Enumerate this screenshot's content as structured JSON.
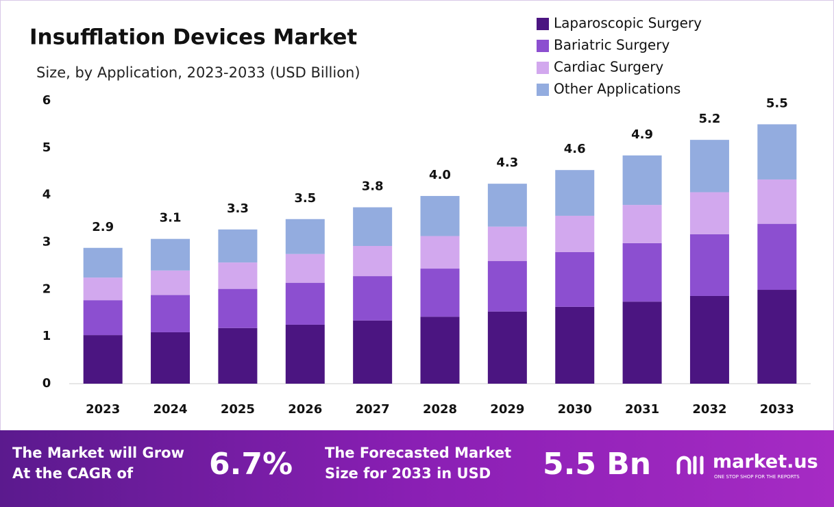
{
  "chart_data": {
    "type": "stacked_bar",
    "title": "Insufflation Devices Market",
    "subtitle": "Size, by Application, 2023-2033 (USD Billion)",
    "categories": [
      "2023",
      "2024",
      "2025",
      "2026",
      "2027",
      "2028",
      "2029",
      "2030",
      "2031",
      "2032",
      "2033"
    ],
    "series": [
      {
        "name": "Laparoscopic Surgery",
        "color": "#4b1581",
        "values": [
          1.03,
          1.09,
          1.18,
          1.25,
          1.34,
          1.42,
          1.53,
          1.63,
          1.74,
          1.86,
          1.99
        ]
      },
      {
        "name": "Bariatric Surgery",
        "color": "#8c4fd0",
        "values": [
          0.74,
          0.79,
          0.83,
          0.89,
          0.94,
          1.02,
          1.07,
          1.16,
          1.24,
          1.31,
          1.4
        ]
      },
      {
        "name": "Cardiac Surgery",
        "color": "#d2a8ee",
        "values": [
          0.48,
          0.52,
          0.56,
          0.61,
          0.64,
          0.69,
          0.73,
          0.77,
          0.81,
          0.89,
          0.94
        ]
      },
      {
        "name": "Other Applications",
        "color": "#93acdf",
        "values": [
          0.63,
          0.67,
          0.7,
          0.74,
          0.82,
          0.85,
          0.91,
          0.97,
          1.05,
          1.11,
          1.17
        ]
      }
    ],
    "totals": [
      {
        "value": 2.9,
        "label": "2.9"
      },
      {
        "value": 3.1,
        "label": "3.1"
      },
      {
        "value": 3.3,
        "label": "3.3"
      },
      {
        "value": 3.5,
        "label": "3.5"
      },
      {
        "value": 3.8,
        "label": "3.8"
      },
      {
        "value": 4.0,
        "label": "4.0"
      },
      {
        "value": 4.3,
        "label": "4.3"
      },
      {
        "value": 4.6,
        "label": "4.6"
      },
      {
        "value": 4.9,
        "label": "4.9"
      },
      {
        "value": 5.2,
        "label": "5.2"
      },
      {
        "value": 5.5,
        "label": "5.5"
      }
    ],
    "ylim": [
      0,
      6
    ],
    "yticks": [
      0,
      1,
      2,
      3,
      4,
      5,
      6
    ],
    "grid": false,
    "legend": "top-right"
  },
  "footer": {
    "cagr_text": [
      "The Market will Grow",
      "At the CAGR of"
    ],
    "cagr": "6.7%",
    "forecast_text": [
      "The Forecasted Market",
      "Size for 2033 in USD"
    ],
    "forecast": "5.5 Bn",
    "brand": "market.us",
    "tagline": "ONE STOP SHOP FOR THE REPORTS"
  }
}
